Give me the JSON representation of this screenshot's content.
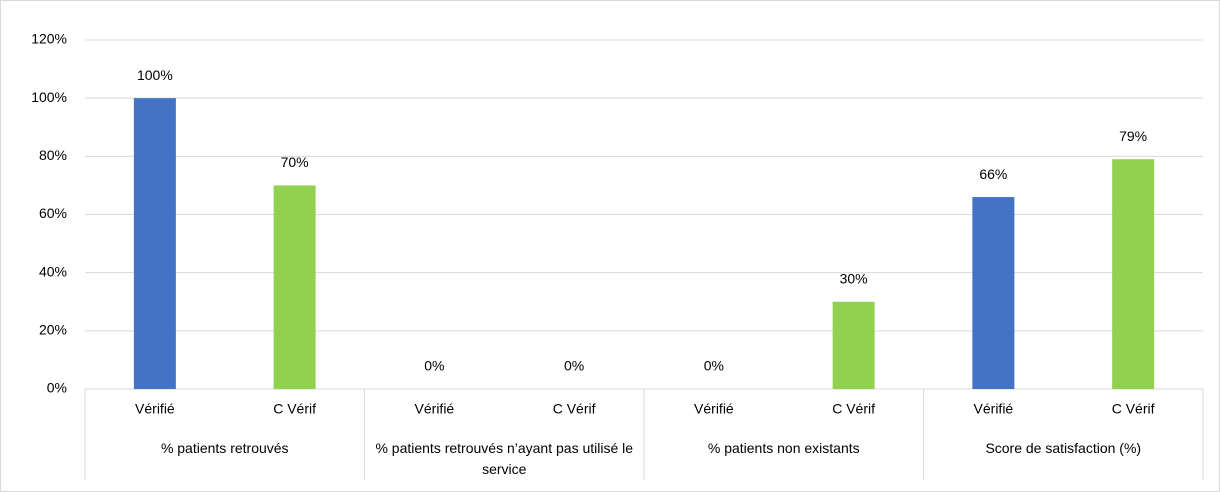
{
  "chart_data": {
    "type": "bar",
    "categories": [
      "Vérifié",
      "C Vérif",
      "Vérifié",
      "C Vérif",
      "Vérifié",
      "C Vérif",
      "Vérifié",
      "C Vérif"
    ],
    "group_labels": [
      "% patients retrouvés",
      "% patients retrouvés n’ayant pas utilisé le service",
      "% patients  non existants",
      "Score de satisfaction (%)"
    ],
    "values": [
      100,
      70,
      0,
      0,
      0,
      30,
      66,
      79
    ],
    "value_labels": [
      "100%",
      "70%",
      "0%",
      "0%",
      "0%",
      "30%",
      "66%",
      "79%"
    ],
    "colors": [
      "#4472c4",
      "#92d050"
    ],
    "ylim": [
      0,
      120
    ],
    "yticks": [
      {
        "value": 0,
        "label": "0%"
      },
      {
        "value": 20,
        "label": "20%"
      },
      {
        "value": 40,
        "label": "40%"
      },
      {
        "value": 60,
        "label": "60%"
      },
      {
        "value": 80,
        "label": "80%"
      },
      {
        "value": 100,
        "label": "100%"
      },
      {
        "value": 120,
        "label": "120%"
      }
    ],
    "grid": true
  }
}
